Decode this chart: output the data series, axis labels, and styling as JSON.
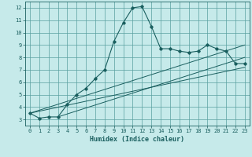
{
  "xlabel": "Humidex (Indice chaleur)",
  "xlim": [
    -0.5,
    23.5
  ],
  "ylim": [
    2.5,
    12.5
  ],
  "xticks": [
    0,
    1,
    2,
    3,
    4,
    5,
    6,
    7,
    8,
    9,
    10,
    11,
    12,
    13,
    14,
    15,
    16,
    17,
    18,
    19,
    20,
    21,
    22,
    23
  ],
  "yticks": [
    3,
    4,
    5,
    6,
    7,
    8,
    9,
    10,
    11,
    12
  ],
  "bg_color": "#c6eaea",
  "grid_color": "#5aa0a0",
  "line_color": "#1a5f5f",
  "main_x": [
    0,
    1,
    2,
    3,
    4,
    5,
    6,
    7,
    8,
    9,
    10,
    11,
    12,
    13,
    14,
    15,
    16,
    17,
    18,
    19,
    20,
    21,
    22,
    23
  ],
  "main_y": [
    3.5,
    3.1,
    3.2,
    3.2,
    4.2,
    5.0,
    5.5,
    6.3,
    7.0,
    9.3,
    10.8,
    12.0,
    12.1,
    10.5,
    8.7,
    8.7,
    8.5,
    8.4,
    8.5,
    9.0,
    8.7,
    8.5,
    7.5,
    7.5
  ],
  "ref_line1_x": [
    0,
    23
  ],
  "ref_line1_y": [
    3.5,
    7.2
  ],
  "ref_line2_x": [
    0,
    23
  ],
  "ref_line2_y": [
    3.5,
    9.0
  ],
  "ref_line3_x": [
    3,
    23
  ],
  "ref_line3_y": [
    3.2,
    8.0
  ],
  "xlabel_fontsize": 6.0,
  "tick_fontsize": 5.0
}
